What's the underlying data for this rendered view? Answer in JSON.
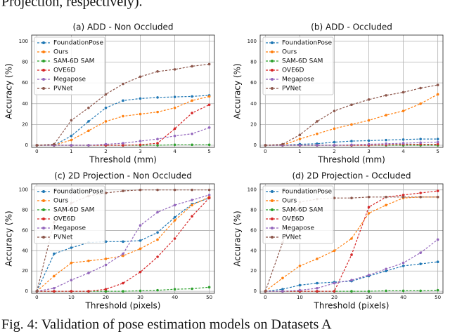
{
  "top_text": "Projection, respectively).",
  "caption": "Fig. 4: Validation of pose estimation models on Datasets A",
  "chart_data": [
    {
      "type": "line",
      "title": "(a) ADD - Non Occluded",
      "xlabel": "Threshold (mm)",
      "ylabel": "Accuracy (%)",
      "x": [
        0,
        0.5,
        1,
        1.5,
        2,
        2.5,
        3,
        3.5,
        4,
        4.5,
        5
      ],
      "xlim": [
        -0.15,
        5.15
      ],
      "xticks": [
        0,
        1,
        2,
        3,
        4,
        5
      ],
      "ylim": [
        -2,
        106
      ],
      "yticks": [
        0,
        20,
        40,
        60,
        80,
        100
      ],
      "grid": true,
      "legend": "upper left",
      "series": [
        {
          "name": "FoundationPose",
          "color": "#1f77b4",
          "values": [
            0,
            0,
            9,
            23,
            36,
            43,
            45,
            46,
            46.5,
            47,
            48
          ]
        },
        {
          "name": "Ours",
          "color": "#ff7f0e",
          "values": [
            0,
            0,
            5,
            14,
            23,
            28,
            30,
            32,
            36,
            43,
            47
          ]
        },
        {
          "name": "SAM-6D SAM",
          "color": "#2ca02c",
          "values": [
            0,
            0,
            0,
            0,
            0,
            0,
            0,
            0,
            0.5,
            0.5,
            0.5
          ]
        },
        {
          "name": "OVE6D",
          "color": "#d62728",
          "values": [
            0,
            0,
            0,
            0,
            0,
            0,
            0.5,
            2,
            16,
            31,
            39
          ]
        },
        {
          "name": "Megapose",
          "color": "#9467bd",
          "values": [
            0,
            0,
            0,
            0,
            1,
            2,
            4,
            6,
            9,
            11,
            17
          ]
        },
        {
          "name": "PVNet",
          "color": "#8c564b",
          "values": [
            0,
            1,
            24,
            36,
            49,
            59,
            66,
            71,
            73,
            76,
            78
          ]
        }
      ]
    },
    {
      "type": "line",
      "title": "(b) ADD - Occluded",
      "xlabel": "Threshold (mm)",
      "ylabel": "Accuracy (%)",
      "x": [
        0,
        0.5,
        1,
        1.5,
        2,
        2.5,
        3,
        3.5,
        4,
        4.5,
        5
      ],
      "xlim": [
        -0.15,
        5.15
      ],
      "xticks": [
        0,
        1,
        2,
        3,
        4,
        5
      ],
      "ylim": [
        -2,
        106
      ],
      "yticks": [
        0,
        20,
        40,
        60,
        80,
        100
      ],
      "grid": true,
      "legend": "upper left",
      "series": [
        {
          "name": "FoundationPose",
          "color": "#1f77b4",
          "values": [
            0,
            0,
            1,
            1.5,
            3,
            4,
            4.5,
            5,
            5.5,
            6,
            6
          ]
        },
        {
          "name": "Ours",
          "color": "#ff7f0e",
          "values": [
            0,
            0,
            6,
            11,
            16,
            20,
            24,
            29,
            33,
            40,
            49
          ]
        },
        {
          "name": "SAM-6D SAM",
          "color": "#2ca02c",
          "values": [
            0,
            0,
            0,
            0,
            0,
            0,
            0,
            0,
            0,
            0,
            0
          ]
        },
        {
          "name": "OVE6D",
          "color": "#d62728",
          "values": [
            0,
            0,
            0,
            0,
            0,
            0,
            0,
            0.5,
            1,
            1,
            1
          ]
        },
        {
          "name": "Megapose",
          "color": "#9467bd",
          "values": [
            0,
            0,
            0,
            0,
            0,
            0.5,
            1,
            1.5,
            2,
            2.5,
            3
          ]
        },
        {
          "name": "PVNet",
          "color": "#8c564b",
          "values": [
            0,
            1,
            10,
            23,
            33,
            39,
            44,
            48,
            51,
            55,
            58
          ]
        }
      ]
    },
    {
      "type": "line",
      "title": "(c) 2D Projection - Non Occluded",
      "xlabel": "Threshold (pixels)",
      "ylabel": "Accuracy (%)",
      "x": [
        0,
        5,
        10,
        15,
        20,
        25,
        30,
        35,
        40,
        45,
        50
      ],
      "xlim": [
        -1.5,
        51.5
      ],
      "xticks": [
        0,
        10,
        20,
        30,
        40,
        50
      ],
      "ylim": [
        -2,
        106
      ],
      "yticks": [
        0,
        20,
        40,
        60,
        80,
        100
      ],
      "grid": true,
      "legend": "upper left",
      "series": [
        {
          "name": "FoundationPose",
          "color": "#1f77b4",
          "values": [
            0,
            37,
            43,
            48,
            49,
            49,
            50,
            58,
            73,
            86,
            92
          ]
        },
        {
          "name": "Ours",
          "color": "#ff7f0e",
          "values": [
            0,
            15,
            28,
            30,
            32,
            35,
            42,
            51,
            70,
            85,
            93
          ]
        },
        {
          "name": "SAM-6D SAM",
          "color": "#2ca02c",
          "values": [
            0,
            0,
            0,
            0,
            0,
            0,
            0.5,
            1,
            2,
            2.5,
            4
          ]
        },
        {
          "name": "OVE6D",
          "color": "#d62728",
          "values": [
            0,
            0,
            0,
            0,
            2,
            8,
            19,
            34,
            52,
            74,
            92
          ]
        },
        {
          "name": "Megapose",
          "color": "#9467bd",
          "values": [
            0,
            3,
            11,
            18,
            26,
            37,
            65,
            78,
            85,
            90,
            95
          ]
        },
        {
          "name": "PVNet",
          "color": "#8c564b",
          "values": [
            0,
            68,
            87,
            94,
            97,
            99,
            100,
            100,
            100,
            100,
            100
          ]
        }
      ]
    },
    {
      "type": "line",
      "title": "(d) 2D Projection - Occluded",
      "xlabel": "Threshold (pixels)",
      "ylabel": "Accuracy (%)",
      "x": [
        0,
        5,
        10,
        15,
        20,
        25,
        30,
        35,
        40,
        45,
        50
      ],
      "xlim": [
        -1.5,
        51.5
      ],
      "xticks": [
        0,
        10,
        20,
        30,
        40,
        50
      ],
      "ylim": [
        -2,
        106
      ],
      "yticks": [
        0,
        20,
        40,
        60,
        80,
        100
      ],
      "grid": true,
      "legend": "upper left",
      "series": [
        {
          "name": "FoundationPose",
          "color": "#1f77b4",
          "values": [
            0,
            2,
            6,
            8,
            9,
            10,
            15,
            20,
            25,
            27,
            29
          ]
        },
        {
          "name": "Ours",
          "color": "#ff7f0e",
          "values": [
            0,
            13,
            25,
            32,
            40,
            52,
            77,
            85,
            92,
            93,
            93
          ]
        },
        {
          "name": "SAM-6D SAM",
          "color": "#2ca02c",
          "values": [
            0,
            0,
            0,
            0,
            0,
            0,
            0,
            0.5,
            0.5,
            0.5,
            1
          ]
        },
        {
          "name": "OVE6D",
          "color": "#d62728",
          "values": [
            0,
            0,
            0,
            0,
            0,
            36,
            83,
            93,
            95,
            97,
            99
          ]
        },
        {
          "name": "Megapose",
          "color": "#9467bd",
          "values": [
            0,
            0,
            1,
            3,
            8,
            11,
            16,
            22,
            28,
            38,
            51
          ]
        },
        {
          "name": "PVNet",
          "color": "#8c564b",
          "values": [
            0,
            48,
            88,
            91,
            92,
            92,
            93,
            93,
            93,
            93,
            93
          ]
        }
      ]
    }
  ]
}
